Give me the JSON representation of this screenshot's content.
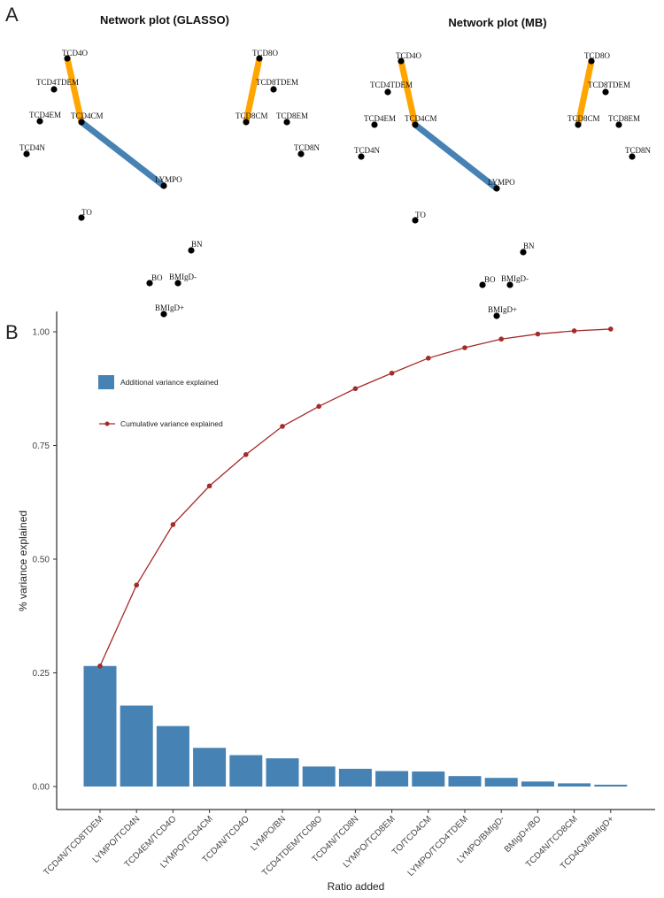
{
  "panels": {
    "a_label": "A",
    "b_label": "B"
  },
  "colors": {
    "edge_orange": "#FFA500",
    "edge_blue": "#4682B4",
    "bar": "#4682B4",
    "line": "#A52A2A",
    "node": "#000000"
  },
  "networks": [
    {
      "title": "Network plot (GLASSO)",
      "nodes": [
        "TCD4O",
        "TCD4TDEM",
        "TCD4EM",
        "TCD4CM",
        "TCD4N",
        "LYMPO",
        "TO",
        "BN",
        "BO",
        "BMIgD-",
        "BMIgD+",
        "TCD8O",
        "TCD8TDEM",
        "TCD8CM",
        "TCD8EM",
        "TCD8N"
      ],
      "edges": [
        {
          "from": "TCD4O",
          "to": "TCD4CM",
          "type": "orange"
        },
        {
          "from": "TCD4CM",
          "to": "LYMPO",
          "type": "blue"
        },
        {
          "from": "TCD8O",
          "to": "TCD8CM",
          "type": "orange"
        }
      ]
    },
    {
      "title": "Network plot (MB)",
      "nodes": [
        "TCD4O",
        "TCD4TDEM",
        "TCD4EM",
        "TCD4CM",
        "TCD4N",
        "LYMPO",
        "TO",
        "BN",
        "BO",
        "BMIgD-",
        "BMIgD+",
        "TCD8O",
        "TCD8TDEM",
        "TCD8CM",
        "TCD8EM",
        "TCD8N"
      ],
      "edges": [
        {
          "from": "TCD4O",
          "to": "TCD4CM",
          "type": "orange"
        },
        {
          "from": "TCD4CM",
          "to": "LYMPO",
          "type": "blue"
        },
        {
          "from": "TCD8O",
          "to": "TCD8CM",
          "type": "orange"
        }
      ]
    }
  ],
  "chart_data": {
    "type": "bar",
    "xlabel": "Ratio added",
    "ylabel": "% variance explained",
    "ylim": [
      0,
      1.0
    ],
    "yticks": [
      0.0,
      0.25,
      0.5,
      0.75,
      1.0
    ],
    "ytick_labels": [
      "0.00",
      "0.25",
      "0.50",
      "0.75",
      "1.00"
    ],
    "legend_position": "top-left",
    "categories": [
      "TCD4N/TCD8TDEM",
      "LYMPO/TCD4N",
      "TCD4EM/TCD4O",
      "LYMPO/TCD4CM",
      "TCD4N/TCD4O",
      "LYMPO/BN",
      "TCD4TDEM/TCD8O",
      "TCD4N/TCD8N",
      "LYMPO/TCD8EM",
      "TO/TCD4CM",
      "LYMPO/TCD4TDEM",
      "LYMPO/BMIgD-",
      "BMIgD+/BO",
      "TCD4N/TCD8CM",
      "TCD4CM/BMIgD+"
    ],
    "series": [
      {
        "name": "Additional variance explained",
        "kind": "bar",
        "values": [
          0.265,
          0.178,
          0.133,
          0.085,
          0.069,
          0.062,
          0.044,
          0.039,
          0.034,
          0.033,
          0.023,
          0.019,
          0.011,
          0.007,
          0.004
        ]
      },
      {
        "name": "Cumulative variance explained",
        "kind": "line",
        "values": [
          0.265,
          0.443,
          0.576,
          0.661,
          0.73,
          0.792,
          0.836,
          0.875,
          0.909,
          0.942,
          0.965,
          0.984,
          0.995,
          1.002,
          1.006
        ]
      }
    ]
  }
}
